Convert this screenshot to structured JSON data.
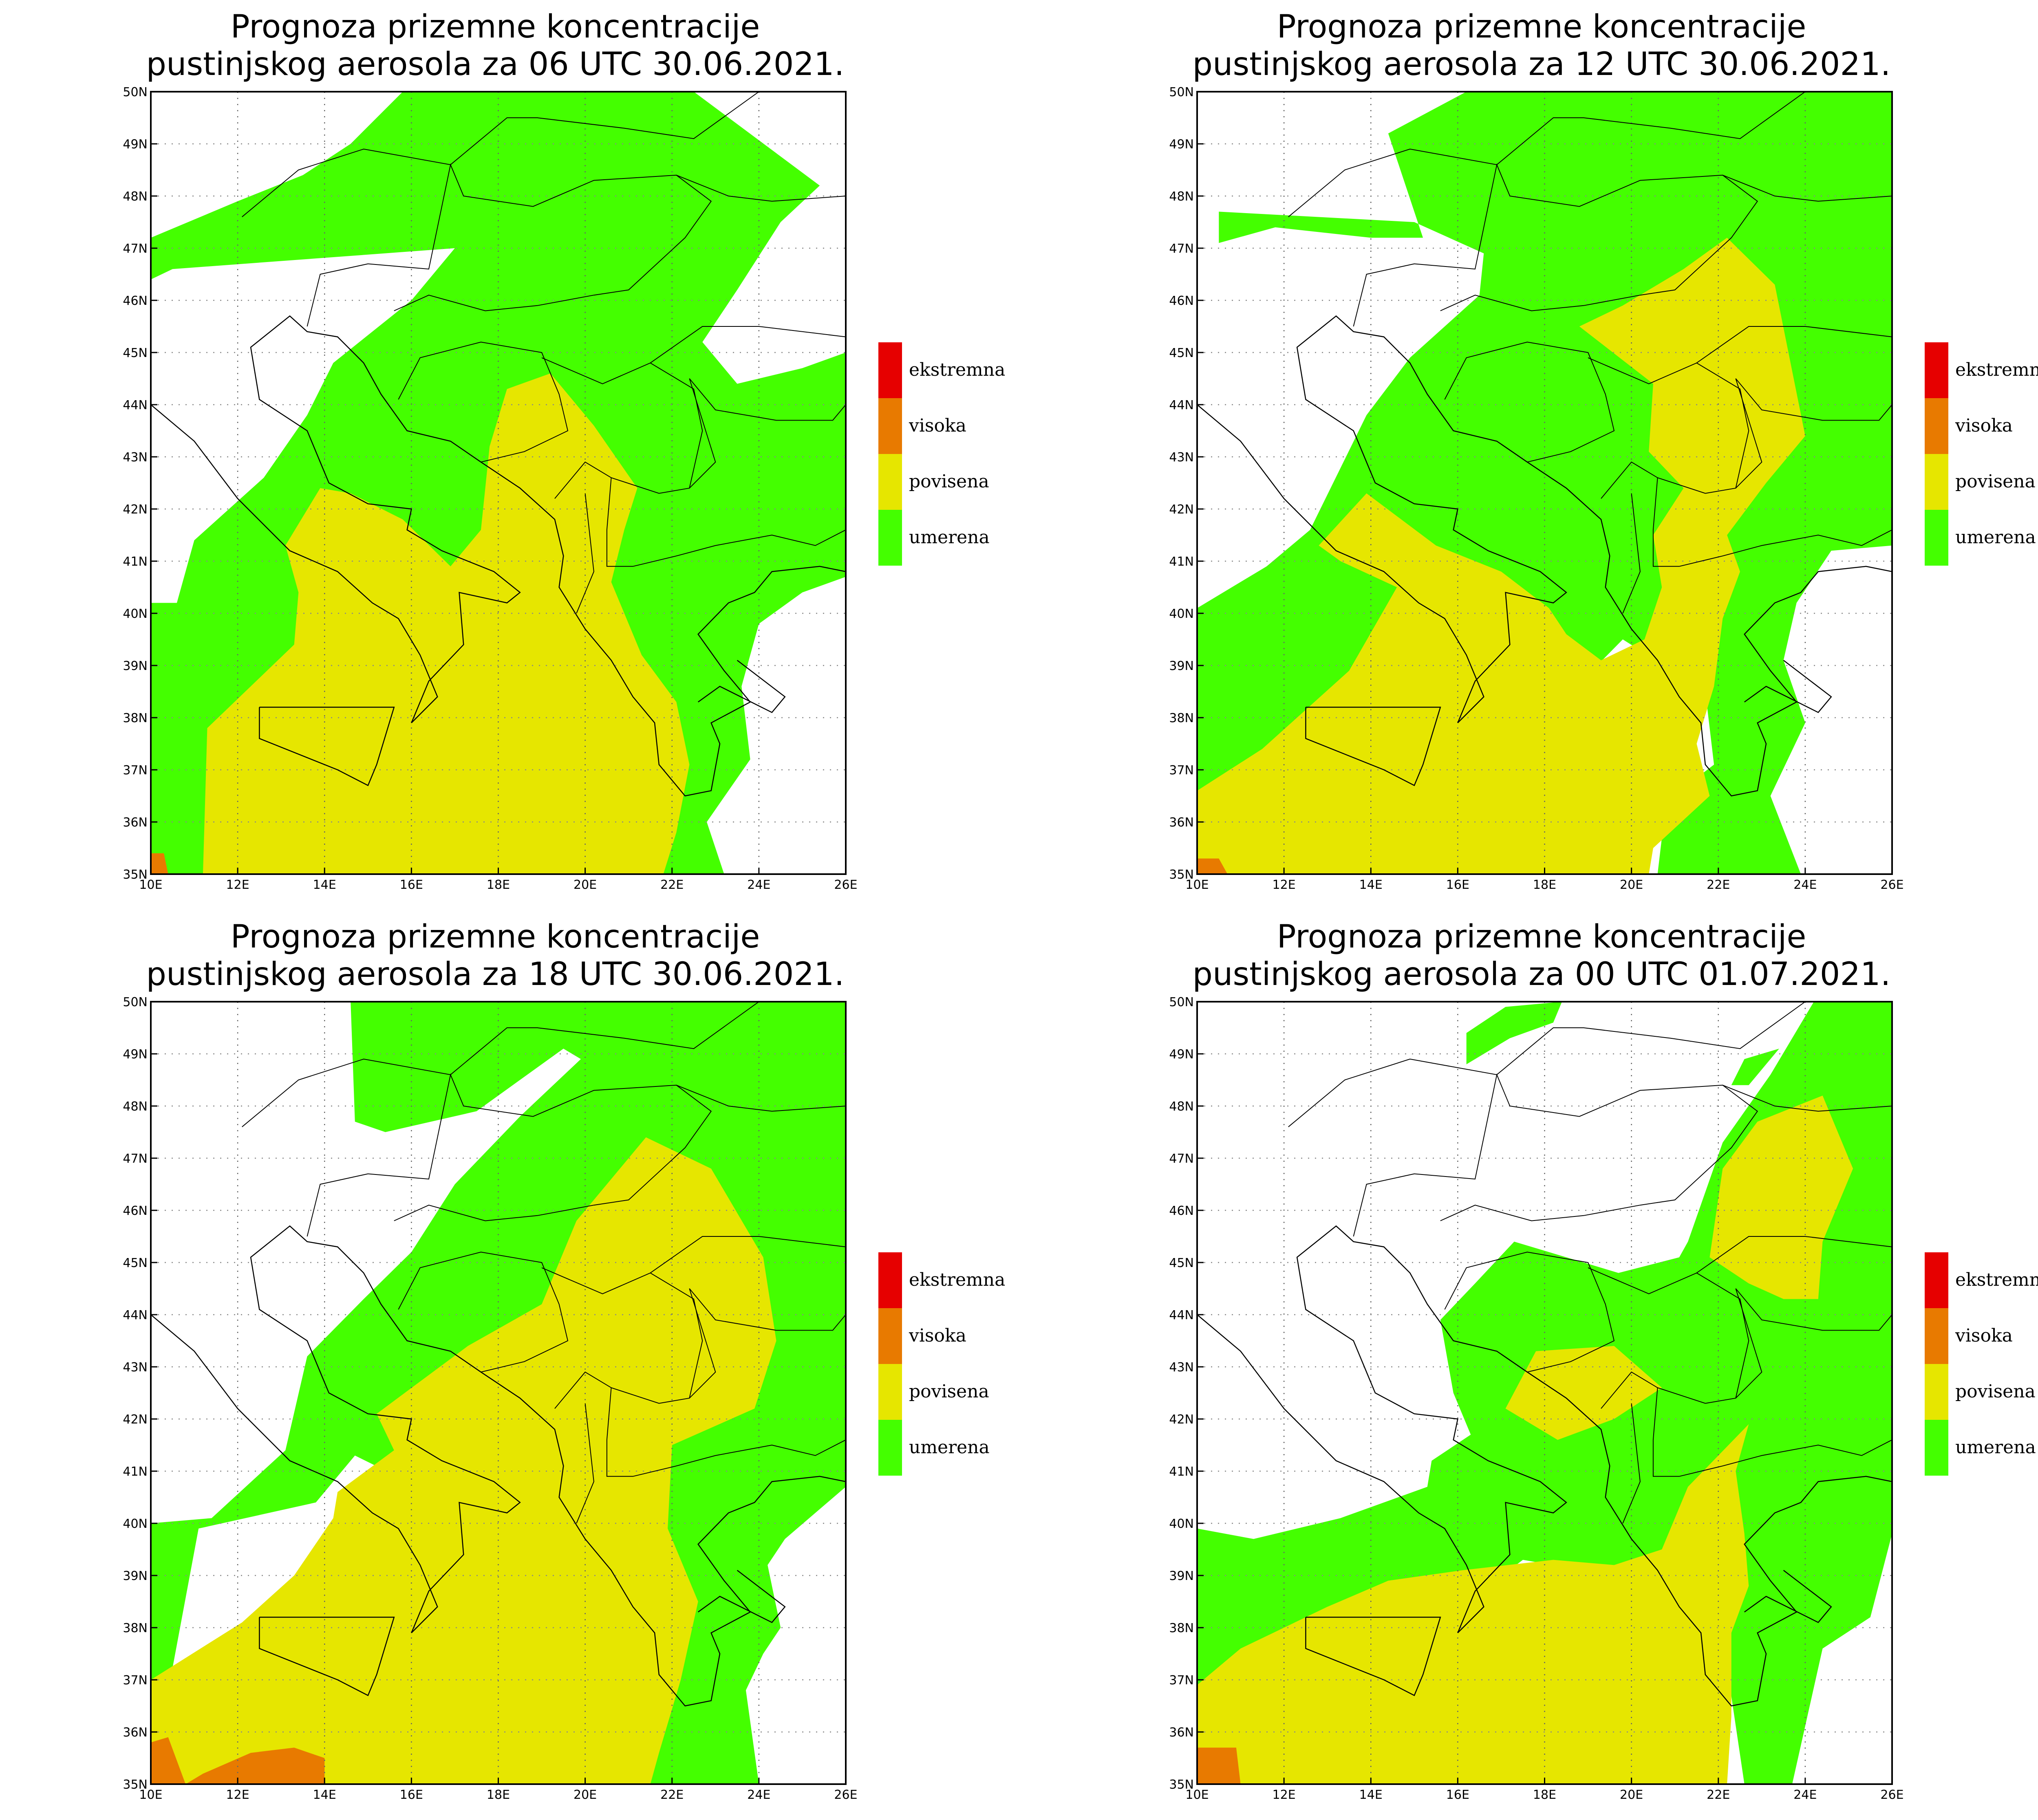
{
  "legend": [
    {
      "label": "ekstremna",
      "color": "#e60000"
    },
    {
      "label": "visoka",
      "color": "#e87a00"
    },
    {
      "label": "povisena",
      "color": "#e6e600"
    },
    {
      "label": "umerena",
      "color": "#44ff00"
    }
  ],
  "axes": {
    "lat_labels": [
      "35N",
      "36N",
      "37N",
      "38N",
      "39N",
      "40N",
      "41N",
      "42N",
      "43N",
      "44N",
      "45N",
      "46N",
      "47N",
      "48N",
      "49N",
      "50N"
    ],
    "lon_labels": [
      "10E",
      "12E",
      "14E",
      "16E",
      "18E",
      "20E",
      "22E",
      "24E",
      "26E"
    ]
  },
  "panels": [
    {
      "title_line1": "Prognoza prizemne koncentracije",
      "title_line2": "pustinjskog aerosola za 06 UTC 30.06.2021."
    },
    {
      "title_line1": "Prognoza prizemne koncentracije",
      "title_line2": "pustinjskog aerosola za 12 UTC 30.06.2021."
    },
    {
      "title_line1": "Prognoza prizemne koncentracije",
      "title_line2": "pustinjskog aerosola za 18 UTC 30.06.2021."
    },
    {
      "title_line1": "Prognoza prizemne koncentracije",
      "title_line2": "pustinjskog aerosola za 00 UTC 01.07.2021."
    }
  ]
}
